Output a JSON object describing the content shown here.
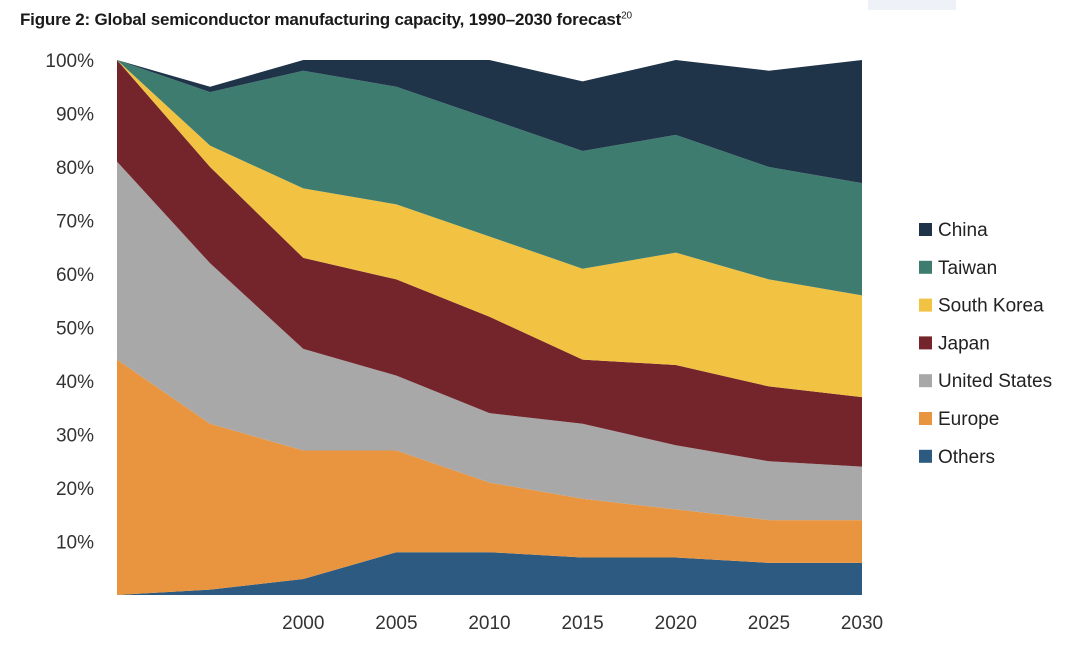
{
  "title": "Figure 2: Global semiconductor manufacturing capacity, 1990–2030 forecast",
  "title_footnote": "20",
  "chart_data": {
    "type": "area",
    "stacked": true,
    "percent": true,
    "title": "Figure 2: Global semiconductor manufacturing capacity, 1990–2030 forecast",
    "xlabel": "",
    "ylabel": "",
    "x": [
      1990,
      1995,
      2000,
      2005,
      2010,
      2015,
      2020,
      2025,
      2030
    ],
    "x_tick_labels": [
      "2000",
      "2005",
      "2010",
      "2015",
      "2020",
      "2025",
      "2030"
    ],
    "x_tick_values": [
      2000,
      2005,
      2010,
      2015,
      2020,
      2025,
      2030
    ],
    "y_tick_labels": [
      "10%",
      "20%",
      "30%",
      "40%",
      "50%",
      "60%",
      "70%",
      "80%",
      "90%",
      "100%"
    ],
    "y_tick_values": [
      10,
      20,
      30,
      40,
      50,
      60,
      70,
      80,
      90,
      100
    ],
    "ylim": [
      0,
      100
    ],
    "series": [
      {
        "name": "Others",
        "color": "#2d5a80",
        "values": [
          0,
          1,
          3,
          8,
          8,
          7,
          7,
          6,
          6
        ]
      },
      {
        "name": "Europe",
        "color": "#e99540",
        "values": [
          44,
          31,
          24,
          19,
          13,
          11,
          9,
          8,
          8
        ]
      },
      {
        "name": "United States",
        "color": "#a8a8a8",
        "values": [
          37,
          30,
          19,
          14,
          13,
          14,
          12,
          11,
          10
        ]
      },
      {
        "name": "Japan",
        "color": "#74252c",
        "values": [
          19,
          18,
          17,
          18,
          18,
          12,
          15,
          14,
          13
        ]
      },
      {
        "name": "South Korea",
        "color": "#f2c243",
        "values": [
          0,
          4,
          13,
          14,
          15,
          17,
          21,
          20,
          19
        ]
      },
      {
        "name": "Taiwan",
        "color": "#3e7c70",
        "values": [
          0,
          10,
          22,
          22,
          22,
          22,
          22,
          21,
          21
        ]
      },
      {
        "name": "China",
        "color": "#1f3449",
        "values": [
          0,
          1,
          2,
          5,
          11,
          13,
          14,
          18,
          23
        ]
      }
    ],
    "legend_order": [
      "China",
      "Taiwan",
      "South Korea",
      "Japan",
      "United States",
      "Europe",
      "Others"
    ],
    "legend_position": "right"
  }
}
